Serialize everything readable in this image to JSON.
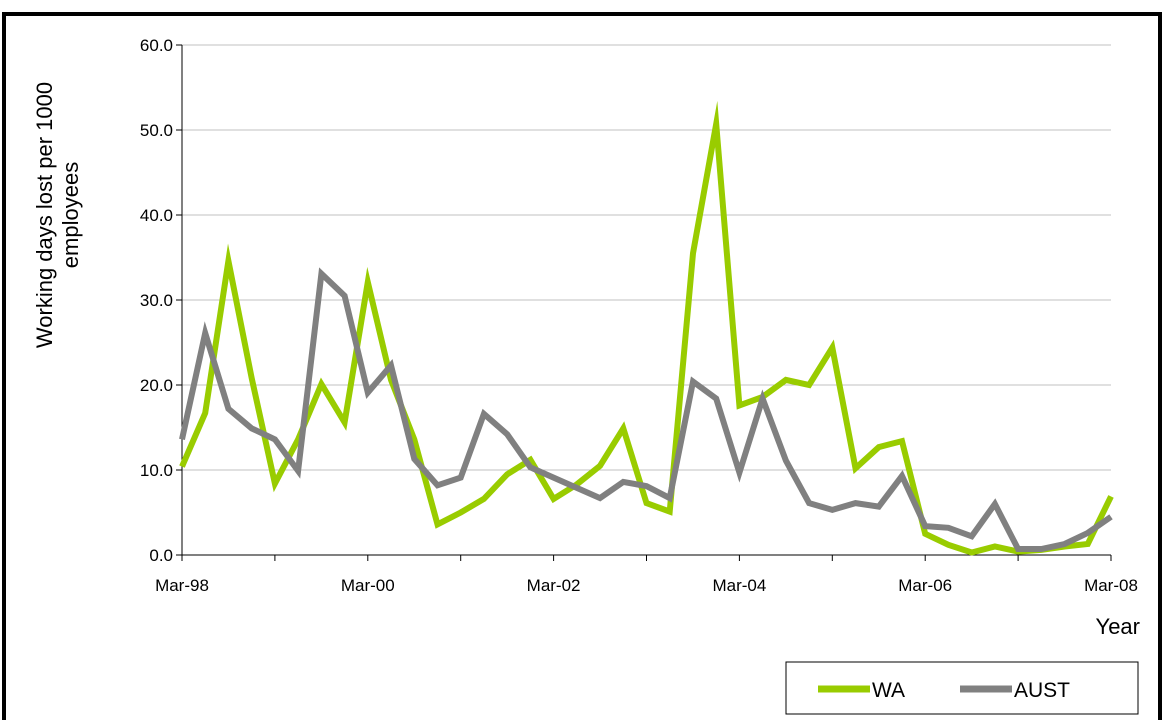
{
  "chart_data": {
    "type": "line",
    "title": "",
    "ylabel": "Working days lost per 1000 employees",
    "ylabel_lines": [
      "Working days lost per 1000",
      "employees"
    ],
    "xlabel": "Year",
    "ylim": [
      0,
      60
    ],
    "ytick_labels": [
      "0.0",
      "10.0",
      "20.0",
      "30.0",
      "40.0",
      "50.0",
      "60.0"
    ],
    "xtick_labels": [
      "Mar-98",
      "Mar-00",
      "Mar-02",
      "Mar-04",
      "Mar-06",
      "Mar-08"
    ],
    "x_period": "quarterly",
    "x": [
      "Mar-98",
      "Jun-98",
      "Sep-98",
      "Dec-98",
      "Mar-99",
      "Jun-99",
      "Sep-99",
      "Dec-99",
      "Mar-00",
      "Jun-00",
      "Sep-00",
      "Dec-00",
      "Mar-01",
      "Jun-01",
      "Sep-01",
      "Dec-01",
      "Mar-02",
      "Jun-02",
      "Sep-02",
      "Dec-02",
      "Mar-03",
      "Jun-03",
      "Sep-03",
      "Dec-03",
      "Mar-04",
      "Jun-04",
      "Sep-04",
      "Dec-04",
      "Mar-05",
      "Jun-05",
      "Sep-05",
      "Dec-05",
      "Mar-06",
      "Jun-06",
      "Sep-06",
      "Dec-06",
      "Mar-07",
      "Jun-07",
      "Sep-07",
      "Dec-07",
      "Mar-08"
    ],
    "grid": true,
    "legend_position": "bottom-right",
    "series": [
      {
        "name": "WA",
        "color": "#99cc00",
        "values": [
          10.4,
          16.7,
          34.6,
          20.8,
          8.4,
          13.6,
          20.1,
          15.6,
          32.1,
          20.6,
          13.6,
          3.6,
          5.0,
          6.6,
          9.5,
          11.2,
          6.6,
          8.3,
          10.5,
          14.9,
          6.1,
          5.1,
          35.5,
          50.7,
          17.6,
          18.6,
          20.6,
          20.0,
          24.4,
          10.2,
          12.7,
          13.4,
          2.5,
          1.2,
          0.3,
          1.0,
          0.4,
          0.6,
          1.0,
          1.3,
          6.9
        ]
      },
      {
        "name": "AUST",
        "color": "#808080",
        "values": [
          13.6,
          26.1,
          17.2,
          14.9,
          13.6,
          9.9,
          33.1,
          30.5,
          19.1,
          22.3,
          11.3,
          8.2,
          9.1,
          16.6,
          14.2,
          10.3,
          9.1,
          7.9,
          6.7,
          8.6,
          8.1,
          6.7,
          20.4,
          18.4,
          9.7,
          18.4,
          11.1,
          6.1,
          5.3,
          6.1,
          5.7,
          9.3,
          3.4,
          3.2,
          2.2,
          6.0,
          0.7,
          0.7,
          1.3,
          2.6,
          4.5
        ]
      }
    ]
  }
}
